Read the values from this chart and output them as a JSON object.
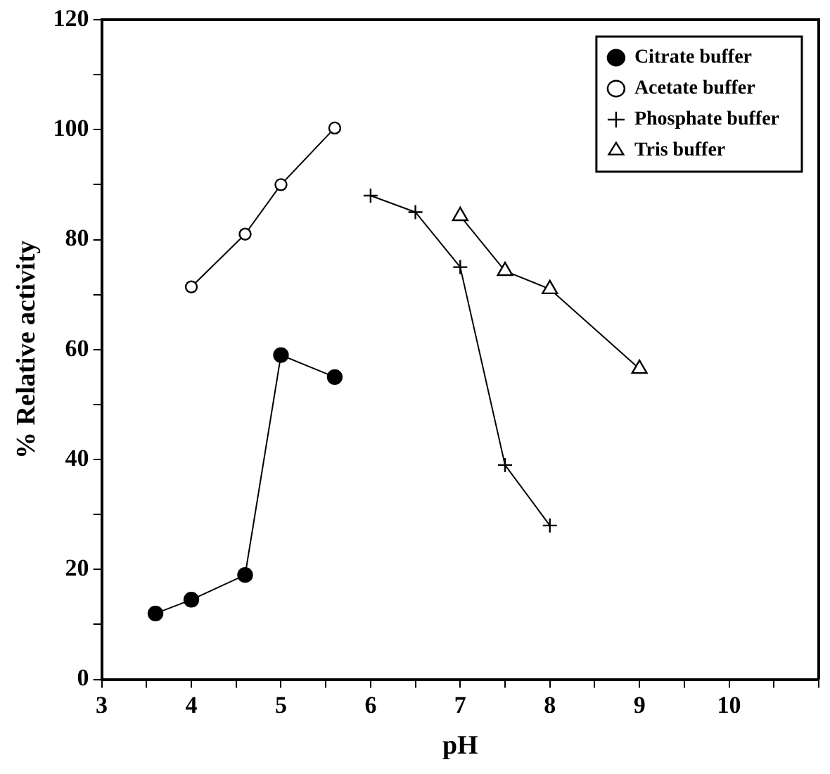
{
  "chart_data": {
    "type": "line",
    "xlabel": "pH",
    "ylabel": "% Relative activity",
    "xlim": [
      3,
      11
    ],
    "xticks": [
      3,
      {
        "value": 3.5,
        "label": null
      },
      4,
      {
        "value": 4.5,
        "label": null
      },
      5,
      {
        "value": 5.5,
        "label": null
      },
      6,
      {
        "value": 6.5,
        "label": null
      },
      7,
      {
        "value": 7.5,
        "label": null
      },
      8,
      {
        "value": 8.5,
        "label": null
      },
      9,
      {
        "value": 9.5,
        "label": null
      },
      10,
      {
        "value": 10.5,
        "label": null
      },
      {
        "value": 11,
        "label": null
      }
    ],
    "ylim": [
      0,
      120
    ],
    "yticks": [
      0,
      {
        "value": 10,
        "label": null
      },
      20,
      {
        "value": 30,
        "label": null
      },
      40,
      {
        "value": 50,
        "label": null
      },
      60,
      {
        "value": 70,
        "label": null
      },
      80,
      {
        "value": 90,
        "label": null
      },
      100,
      {
        "value": 110,
        "label": null
      },
      120
    ],
    "grid": false,
    "legend": "top right",
    "line_style": "solid",
    "series": [
      {
        "name": "Citrate buffer",
        "color": "#000000",
        "marker": "circle",
        "x": [
          3.6,
          4,
          4.6,
          5,
          5.6
        ],
        "values": [
          12,
          14.5,
          19,
          59,
          55
        ]
      },
      {
        "name": "Acetate buffer",
        "color": "#000000",
        "marker": "circle-open",
        "x": [
          4,
          4.6,
          5,
          5.6
        ],
        "values": [
          71.4,
          81,
          90,
          100.3
        ]
      },
      {
        "name": "Phosphate buffer",
        "color": "#000000",
        "marker": "cross",
        "x": [
          6,
          6.5,
          7,
          7.5,
          8
        ],
        "values": [
          88,
          85,
          75,
          39,
          28
        ]
      },
      {
        "name": "Tris buffer",
        "color": "#000000",
        "marker": "triangle",
        "x": [
          7,
          7.5,
          8,
          9
        ],
        "values": [
          84.3,
          74.3,
          71,
          56.5
        ]
      }
    ]
  }
}
